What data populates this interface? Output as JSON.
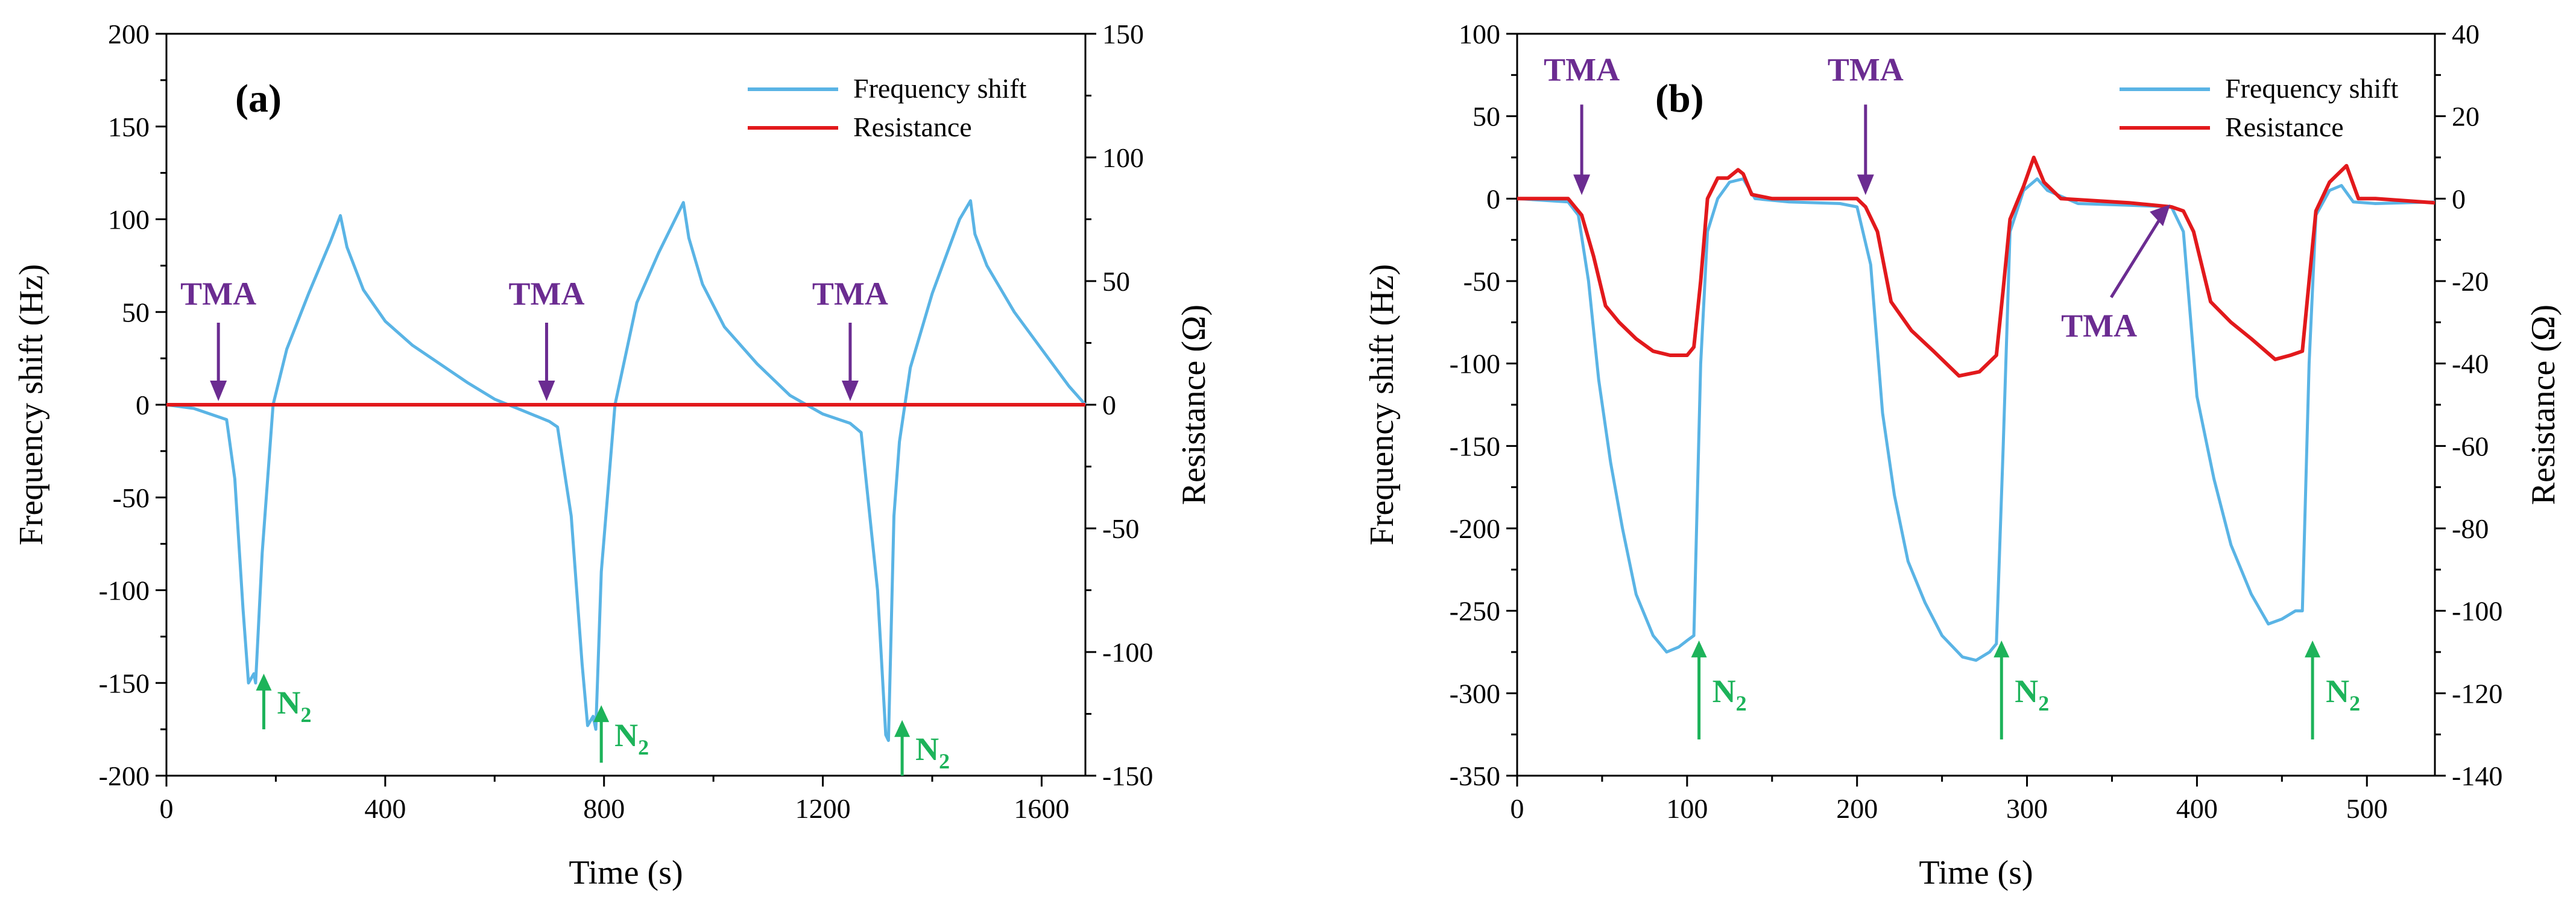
{
  "colors": {
    "frequency": "#5ab4e5",
    "resistance": "#e2191c",
    "tma": "#6b2c91",
    "n2": "#1db35a"
  },
  "chart_data": [
    {
      "type": "line",
      "panel_label": "(a)",
      "xlabel": "Time (s)",
      "ylabel": "Frequency shift (Hz)",
      "y2label": "Resistance (Ω)",
      "xlim": [
        0,
        1680
      ],
      "ylim": [
        -200,
        200
      ],
      "y2lim": [
        -150,
        150
      ],
      "xticks": [
        "0",
        "400",
        "800",
        "1200",
        "1600"
      ],
      "yticks": [
        "200",
        "150",
        "100",
        "50",
        "0",
        "-50",
        "-100",
        "-150",
        "-200"
      ],
      "y2ticks": [
        "150",
        "100",
        "50",
        "0",
        "-50",
        "-100",
        "-150"
      ],
      "legend": [
        "Frequency shift",
        "Resistance"
      ],
      "series": [
        {
          "name": "Frequency shift",
          "axis": "left",
          "x": [
            0,
            50,
            90,
            110,
            125,
            140,
            150,
            160,
            163,
            175,
            195,
            220,
            260,
            300,
            318,
            330,
            360,
            400,
            450,
            500,
            550,
            600,
            650,
            700,
            715,
            740,
            760,
            770,
            780,
            785,
            795,
            820,
            860,
            900,
            945,
            955,
            980,
            1020,
            1080,
            1140,
            1200,
            1250,
            1270,
            1300,
            1315,
            1320,
            1330,
            1340,
            1360,
            1400,
            1450,
            1470,
            1478,
            1500,
            1550,
            1600,
            1650,
            1680
          ],
          "y": [
            0,
            -2,
            -6,
            -8,
            -40,
            -110,
            -150,
            -145,
            -150,
            -80,
            0,
            30,
            60,
            88,
            102,
            85,
            62,
            45,
            32,
            22,
            12,
            3,
            -3,
            -9,
            -12,
            -60,
            -140,
            -173,
            -168,
            -175,
            -90,
            0,
            55,
            82,
            109,
            90,
            65,
            42,
            22,
            5,
            -5,
            -10,
            -15,
            -100,
            -178,
            -181,
            -60,
            -20,
            20,
            60,
            100,
            110,
            92,
            75,
            50,
            30,
            10,
            0
          ]
        },
        {
          "name": "Resistance",
          "axis": "right",
          "x": [
            0,
            400,
            800,
            1200,
            1680
          ],
          "y": [
            0,
            0,
            0,
            0,
            0
          ]
        }
      ],
      "annotations": {
        "tma": [
          {
            "label": "TMA",
            "x": 95,
            "y": 0
          },
          {
            "label": "TMA",
            "x": 695,
            "y": 0
          },
          {
            "label": "TMA",
            "x": 1250,
            "y": 0
          }
        ],
        "n2": [
          {
            "label": "N",
            "sub": "2",
            "x": 178,
            "y_tip": -145,
            "y_base": -175
          },
          {
            "label": "N",
            "sub": "2",
            "x": 795,
            "y_tip": -162,
            "y_base": -193
          },
          {
            "label": "N",
            "sub": "2",
            "x": 1345,
            "y_tip": -170,
            "y_base": -200
          }
        ]
      }
    },
    {
      "type": "line",
      "panel_label": "(b)",
      "xlabel": "Time (s)",
      "ylabel": "Frequency shift (Hz)",
      "y2label": "Resistance (Ω)",
      "xlim": [
        0,
        540
      ],
      "ylim": [
        -350,
        100
      ],
      "y2lim": [
        -140,
        40
      ],
      "xticks": [
        "0",
        "100",
        "200",
        "300",
        "400",
        "500"
      ],
      "yticks": [
        "100",
        "50",
        "0",
        "-50",
        "-100",
        "-150",
        "-200",
        "-250",
        "-300",
        "-350"
      ],
      "y2ticks": [
        "40",
        "20",
        "0",
        "-20",
        "-40",
        "-60",
        "-80",
        "-100",
        "-120",
        "-140"
      ],
      "legend": [
        "Frequency shift",
        "Resistance"
      ],
      "series": [
        {
          "name": "Frequency shift",
          "axis": "left",
          "x": [
            0,
            30,
            36,
            42,
            48,
            55,
            62,
            70,
            80,
            88,
            95,
            100,
            104,
            108,
            112,
            118,
            125,
            133,
            140,
            160,
            190,
            200,
            208,
            215,
            222,
            230,
            240,
            250,
            262,
            270,
            278,
            282,
            286,
            290,
            298,
            306,
            312,
            330,
            360,
            385,
            392,
            400,
            410,
            420,
            432,
            442,
            450,
            458,
            462,
            466,
            470,
            478,
            485,
            492,
            505,
            540
          ],
          "y": [
            0,
            -2,
            -10,
            -50,
            -110,
            -160,
            -200,
            -240,
            -265,
            -275,
            -272,
            -268,
            -265,
            -100,
            -20,
            0,
            10,
            12,
            0,
            -2,
            -3,
            -5,
            -40,
            -130,
            -180,
            -220,
            -245,
            -265,
            -278,
            -280,
            -275,
            -270,
            -150,
            -20,
            5,
            12,
            5,
            -3,
            -4,
            -5,
            -20,
            -120,
            -170,
            -210,
            -240,
            -258,
            -255,
            -250,
            -250,
            -100,
            -10,
            5,
            8,
            -2,
            -3,
            -2
          ]
        },
        {
          "name": "Resistance",
          "axis": "right",
          "x": [
            0,
            30,
            34,
            38,
            45,
            52,
            60,
            70,
            80,
            90,
            100,
            104,
            108,
            112,
            118,
            124,
            130,
            133,
            138,
            150,
            190,
            200,
            205,
            212,
            220,
            232,
            245,
            260,
            272,
            282,
            286,
            290,
            298,
            304,
            310,
            320,
            360,
            385,
            392,
            398,
            408,
            420,
            432,
            446,
            455,
            462,
            466,
            470,
            478,
            488,
            495,
            505,
            540
          ],
          "y": [
            0,
            0,
            -2,
            -4,
            -14,
            -26,
            -30,
            -34,
            -37,
            -38,
            -38,
            -36,
            -20,
            0,
            5,
            5,
            7,
            6,
            1,
            0,
            0,
            0,
            -2,
            -8,
            -25,
            -32,
            -37,
            -43,
            -42,
            -38,
            -22,
            -5,
            3,
            10,
            4,
            0,
            -1,
            -2,
            -3,
            -8,
            -25,
            -30,
            -34,
            -39,
            -38,
            -37,
            -20,
            -3,
            4,
            8,
            0,
            0,
            -1
          ]
        }
      ],
      "annotations": {
        "tma": [
          {
            "label": "TMA",
            "x": 38,
            "y": 0
          },
          {
            "label": "TMA",
            "x": 205,
            "y": 0
          },
          {
            "label": "TMA",
            "x": 385,
            "y": -5
          }
        ],
        "n2": [
          {
            "label": "N",
            "sub": "2",
            "x": 107,
            "y_tip": -268,
            "y_base": -328
          },
          {
            "label": "N",
            "sub": "2",
            "x": 285,
            "y_tip": -268,
            "y_base": -328
          },
          {
            "label": "N",
            "sub": "2",
            "x": 468,
            "y_tip": -268,
            "y_base": -328
          }
        ]
      }
    }
  ]
}
